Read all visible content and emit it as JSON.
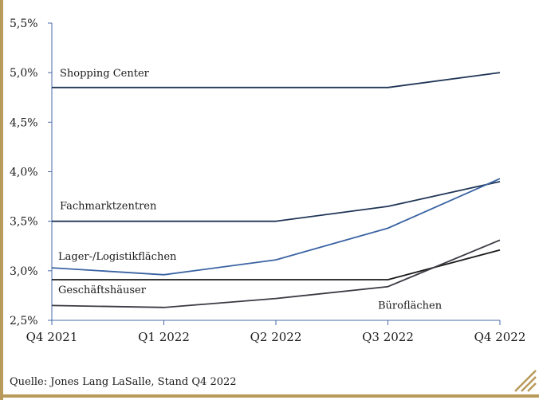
{
  "chart_data": {
    "type": "line",
    "categories": [
      "Q4 2021",
      "Q1 2022",
      "Q2 2022",
      "Q3 2022",
      "Q4 2022"
    ],
    "ylim": [
      2.5,
      5.5
    ],
    "yticks": [
      "2,5%",
      "3,0%",
      "3,5%",
      "4,0%",
      "4,5%",
      "5,0%",
      "5,5%"
    ],
    "ytick_values": [
      2.5,
      3.0,
      3.5,
      4.0,
      4.5,
      5.0,
      5.5
    ],
    "grid": false,
    "series": [
      {
        "name": "Shopping Center",
        "color": "#1f3556",
        "values": [
          4.85,
          4.85,
          4.85,
          4.85,
          5.0
        ]
      },
      {
        "name": "Fachmarktzentren",
        "color": "#1f3556",
        "values": [
          3.5,
          3.5,
          3.5,
          3.65,
          3.9
        ]
      },
      {
        "name": "Lager-/Logistikflächen",
        "color": "#3a63a3",
        "values": [
          3.03,
          2.96,
          3.11,
          3.43,
          3.93
        ]
      },
      {
        "name": "Geschäftshäuser",
        "color": "#1a1a1a",
        "values": [
          2.91,
          2.91,
          2.91,
          2.91,
          3.21
        ]
      },
      {
        "name": "Büroflächen",
        "color": "#3a3a44",
        "values": [
          2.65,
          2.63,
          2.72,
          2.84,
          3.31
        ]
      }
    ]
  },
  "source": "Quelle: Jones Lang LaSalle, Stand Q4 2022",
  "colors": {
    "frame": "#b89a5a",
    "axis": "#4a6aa8"
  }
}
